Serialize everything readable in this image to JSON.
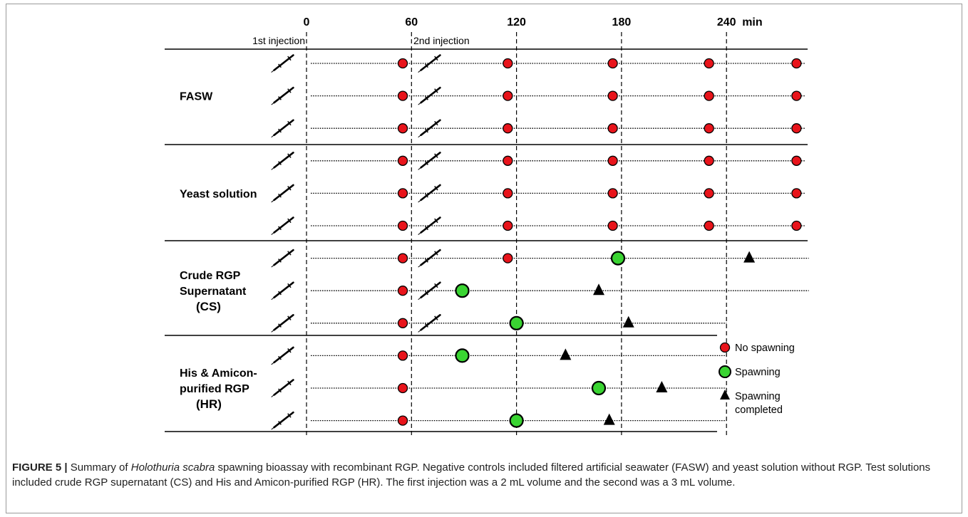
{
  "time_axis": {
    "ticks": [
      "0",
      "60",
      "120",
      "180",
      "240"
    ],
    "unit": "min"
  },
  "injection_labels": {
    "first": "1st injection",
    "second": "2nd injection"
  },
  "groups": [
    {
      "label_lines": [
        "FASW"
      ],
      "rows": [
        {
          "first_injection": true,
          "second_injection": true,
          "events": [
            {
              "t": 55,
              "state": "no_spawning"
            },
            {
              "t": 115,
              "state": "no_spawning"
            },
            {
              "t": 175,
              "state": "no_spawning"
            },
            {
              "t": 230,
              "state": "no_spawning"
            },
            {
              "t": 280,
              "state": "no_spawning"
            }
          ],
          "line_end": 285
        },
        {
          "first_injection": true,
          "second_injection": true,
          "events": [
            {
              "t": 55,
              "state": "no_spawning"
            },
            {
              "t": 115,
              "state": "no_spawning"
            },
            {
              "t": 175,
              "state": "no_spawning"
            },
            {
              "t": 230,
              "state": "no_spawning"
            },
            {
              "t": 280,
              "state": "no_spawning"
            }
          ],
          "line_end": 285
        },
        {
          "first_injection": true,
          "second_injection": true,
          "events": [
            {
              "t": 55,
              "state": "no_spawning"
            },
            {
              "t": 115,
              "state": "no_spawning"
            },
            {
              "t": 175,
              "state": "no_spawning"
            },
            {
              "t": 230,
              "state": "no_spawning"
            },
            {
              "t": 280,
              "state": "no_spawning"
            }
          ],
          "line_end": 285
        }
      ]
    },
    {
      "label_lines": [
        "Yeast solution"
      ],
      "rows": [
        {
          "first_injection": true,
          "second_injection": true,
          "events": [
            {
              "t": 55,
              "state": "no_spawning"
            },
            {
              "t": 115,
              "state": "no_spawning"
            },
            {
              "t": 175,
              "state": "no_spawning"
            },
            {
              "t": 230,
              "state": "no_spawning"
            },
            {
              "t": 280,
              "state": "no_spawning"
            }
          ],
          "line_end": 285
        },
        {
          "first_injection": true,
          "second_injection": true,
          "events": [
            {
              "t": 55,
              "state": "no_spawning"
            },
            {
              "t": 115,
              "state": "no_spawning"
            },
            {
              "t": 175,
              "state": "no_spawning"
            },
            {
              "t": 230,
              "state": "no_spawning"
            },
            {
              "t": 280,
              "state": "no_spawning"
            }
          ],
          "line_end": 285
        },
        {
          "first_injection": true,
          "second_injection": true,
          "events": [
            {
              "t": 55,
              "state": "no_spawning"
            },
            {
              "t": 115,
              "state": "no_spawning"
            },
            {
              "t": 175,
              "state": "no_spawning"
            },
            {
              "t": 230,
              "state": "no_spawning"
            },
            {
              "t": 280,
              "state": "no_spawning"
            }
          ],
          "line_end": 285
        }
      ]
    },
    {
      "label_lines": [
        "Crude RGP",
        "Supernatant",
        "(CS)"
      ],
      "rows": [
        {
          "first_injection": true,
          "second_injection": true,
          "events": [
            {
              "t": 55,
              "state": "no_spawning"
            },
            {
              "t": 115,
              "state": "no_spawning"
            },
            {
              "t": 178,
              "state": "spawning"
            },
            {
              "t": 253,
              "state": "spawning_completed"
            }
          ],
          "line_end": 287
        },
        {
          "first_injection": true,
          "second_injection": true,
          "events": [
            {
              "t": 55,
              "state": "no_spawning"
            },
            {
              "t": 89,
              "state": "spawning"
            },
            {
              "t": 167,
              "state": "spawning_completed"
            }
          ],
          "line_end": 287
        },
        {
          "first_injection": true,
          "second_injection": true,
          "events": [
            {
              "t": 55,
              "state": "no_spawning"
            },
            {
              "t": 120,
              "state": "spawning"
            },
            {
              "t": 184,
              "state": "spawning_completed"
            }
          ],
          "line_end": 240
        }
      ]
    },
    {
      "label_lines": [
        "His & Amicon-",
        "purified RGP",
        "(HR)"
      ],
      "rows": [
        {
          "first_injection": true,
          "second_injection": false,
          "events": [
            {
              "t": 55,
              "state": "no_spawning"
            },
            {
              "t": 89,
              "state": "spawning"
            },
            {
              "t": 148,
              "state": "spawning_completed"
            }
          ],
          "line_end": 240
        },
        {
          "first_injection": true,
          "second_injection": false,
          "events": [
            {
              "t": 55,
              "state": "no_spawning"
            },
            {
              "t": 167,
              "state": "spawning"
            },
            {
              "t": 203,
              "state": "spawning_completed"
            }
          ],
          "line_end": 240
        },
        {
          "first_injection": true,
          "second_injection": false,
          "events": [
            {
              "t": 55,
              "state": "no_spawning"
            },
            {
              "t": 120,
              "state": "spawning"
            },
            {
              "t": 173,
              "state": "spawning_completed"
            }
          ],
          "line_end": 240
        }
      ]
    }
  ],
  "legend": [
    {
      "state": "no_spawning",
      "lines": [
        "No spawning"
      ]
    },
    {
      "state": "spawning",
      "lines": [
        "Spawning"
      ]
    },
    {
      "state": "spawning_completed",
      "lines": [
        "Spawning",
        "completed"
      ]
    }
  ],
  "colors": {
    "no_spawning": "#e8141b",
    "spawning": "#3ad432",
    "spawning_completed": "#000000",
    "rule": "#000000"
  },
  "caption": {
    "label": "FIGURE 5 |",
    "pre": " Summary of ",
    "species": "Holothuria scabra",
    "post": " spawning bioassay with recombinant RGP. Negative controls included filtered artificial seawater (FASW) and yeast solution without RGP. Test solutions included crude RGP supernatant (CS) and His and Amicon-purified RGP (HR). The first injection was a 2 mL volume and the second was a 3 mL volume."
  }
}
